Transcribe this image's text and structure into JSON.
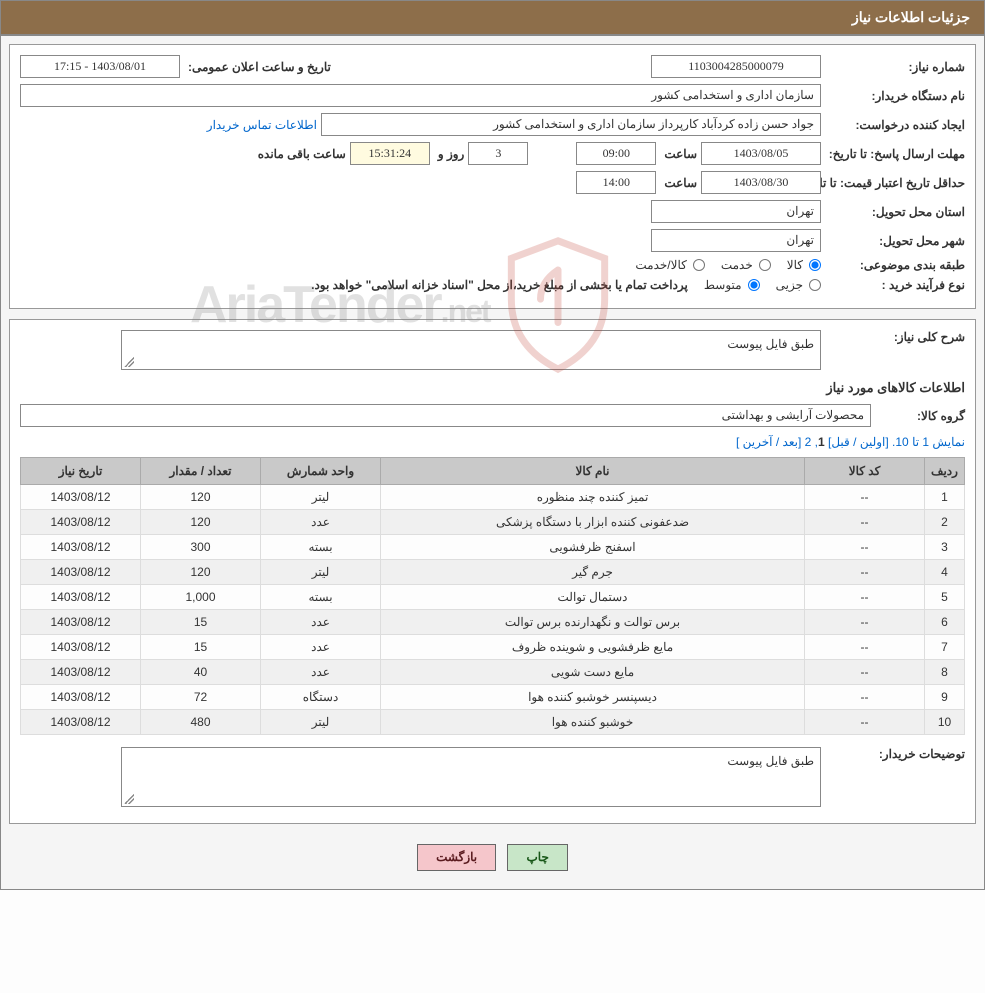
{
  "header": {
    "title": "جزئیات اطلاعات نیاز"
  },
  "info": {
    "need_no_label": "شماره نیاز:",
    "need_no": "1103004285000079",
    "announce_label": "تاریخ و ساعت اعلان عمومی:",
    "announce_value": "1403/08/01 - 17:15",
    "buyer_org_label": "نام دستگاه خریدار:",
    "buyer_org": "سازمان اداری و استخدامی کشور",
    "requester_label": "ایجاد کننده درخواست:",
    "requester": "جواد حسن زاده کردآباد کارپرداز سازمان اداری و استخدامی کشور",
    "contact_link": "اطلاعات تماس خریدار",
    "deadline_label": "مهلت ارسال پاسخ: تا تاریخ:",
    "deadline_date": "1403/08/05",
    "time_label": "ساعت",
    "deadline_time": "09:00",
    "days_value": "3",
    "days_and": "روز و",
    "remain_time": "15:31:24",
    "remain_label": "ساعت باقی مانده",
    "validity_label": "حداقل تاریخ اعتبار قیمت: تا تاریخ:",
    "validity_date": "1403/08/30",
    "validity_time": "14:00",
    "province_label": "استان محل تحویل:",
    "province": "تهران",
    "city_label": "شهر محل تحویل:",
    "city": "تهران",
    "classify_label": "طبقه بندی موضوعی:",
    "radio_goods": "کالا",
    "radio_service": "خدمت",
    "radio_both": "کالا/خدمت",
    "purchase_type_label": "نوع فرآیند خرید :",
    "radio_minor": "جزیی",
    "radio_medium": "متوسط",
    "purchase_note": "پرداخت تمام یا بخشی از مبلغ خرید،از محل \"اسناد خزانه اسلامی\" خواهد بود."
  },
  "desc": {
    "title_label": "شرح کلی نیاز:",
    "title_text": "طبق فایل پیوست",
    "sub_header": "اطلاعات کالاهای مورد نیاز",
    "group_label": "گروه کالا:",
    "group_value": "محصولات آرایشی و بهداشتی"
  },
  "pager": {
    "prefix": "نمایش 1 تا 10. [",
    "first": "اولین",
    "sep1": " / ",
    "prev": "قبل",
    "sep2": "] ",
    "current": "1",
    "sep3": ", ",
    "p2": "2",
    "sep4": " [",
    "next": "بعد",
    "sep5": " / ",
    "last": "آخرین",
    "suffix": " ]"
  },
  "table": {
    "headers": {
      "idx": "ردیف",
      "code": "کد کالا",
      "name": "نام کالا",
      "unit": "واحد شمارش",
      "qty": "تعداد / مقدار",
      "date": "تاریخ نیاز"
    },
    "rows": [
      {
        "idx": "1",
        "code": "--",
        "name": "تمیز کننده چند منظوره",
        "unit": "لیتر",
        "qty": "120",
        "date": "1403/08/12"
      },
      {
        "idx": "2",
        "code": "--",
        "name": "ضدعفونی کننده ابزار با دستگاه پزشکی",
        "unit": "عدد",
        "qty": "120",
        "date": "1403/08/12"
      },
      {
        "idx": "3",
        "code": "--",
        "name": "اسفنج ظرفشویی",
        "unit": "بسته",
        "qty": "300",
        "date": "1403/08/12"
      },
      {
        "idx": "4",
        "code": "--",
        "name": "جرم گیر",
        "unit": "لیتر",
        "qty": "120",
        "date": "1403/08/12"
      },
      {
        "idx": "5",
        "code": "--",
        "name": "دستمال توالت",
        "unit": "بسته",
        "qty": "1,000",
        "date": "1403/08/12"
      },
      {
        "idx": "6",
        "code": "--",
        "name": "برس توالت و نگهدارنده برس توالت",
        "unit": "عدد",
        "qty": "15",
        "date": "1403/08/12"
      },
      {
        "idx": "7",
        "code": "--",
        "name": "مایع ظرفشویی و شوینده ظروف",
        "unit": "عدد",
        "qty": "15",
        "date": "1403/08/12"
      },
      {
        "idx": "8",
        "code": "--",
        "name": "مایع دست شویی",
        "unit": "عدد",
        "qty": "40",
        "date": "1403/08/12"
      },
      {
        "idx": "9",
        "code": "--",
        "name": "دیسپنسر خوشبو کننده هوا",
        "unit": "دستگاه",
        "qty": "72",
        "date": "1403/08/12"
      },
      {
        "idx": "10",
        "code": "--",
        "name": "خوشبو کننده هوا",
        "unit": "لیتر",
        "qty": "480",
        "date": "1403/08/12"
      }
    ]
  },
  "notes": {
    "label": "توضیحات خریدار:",
    "text": "طبق فایل پیوست"
  },
  "buttons": {
    "print": "چاپ",
    "back": "بازگشت"
  },
  "watermark": {
    "text": "AriaTender",
    "suffix": ".net",
    "shield_stroke": "#c0392b",
    "shield_fill_opacity": "0.05"
  },
  "colors": {
    "header_bg": "#8d6e4a",
    "border": "#888888",
    "th_bg": "#c9c9c9",
    "row_alt": "#f0f0f0",
    "link": "#0066cc",
    "btn_print_bg": "#c8e6c8",
    "btn_back_bg": "#f5c6cb"
  }
}
